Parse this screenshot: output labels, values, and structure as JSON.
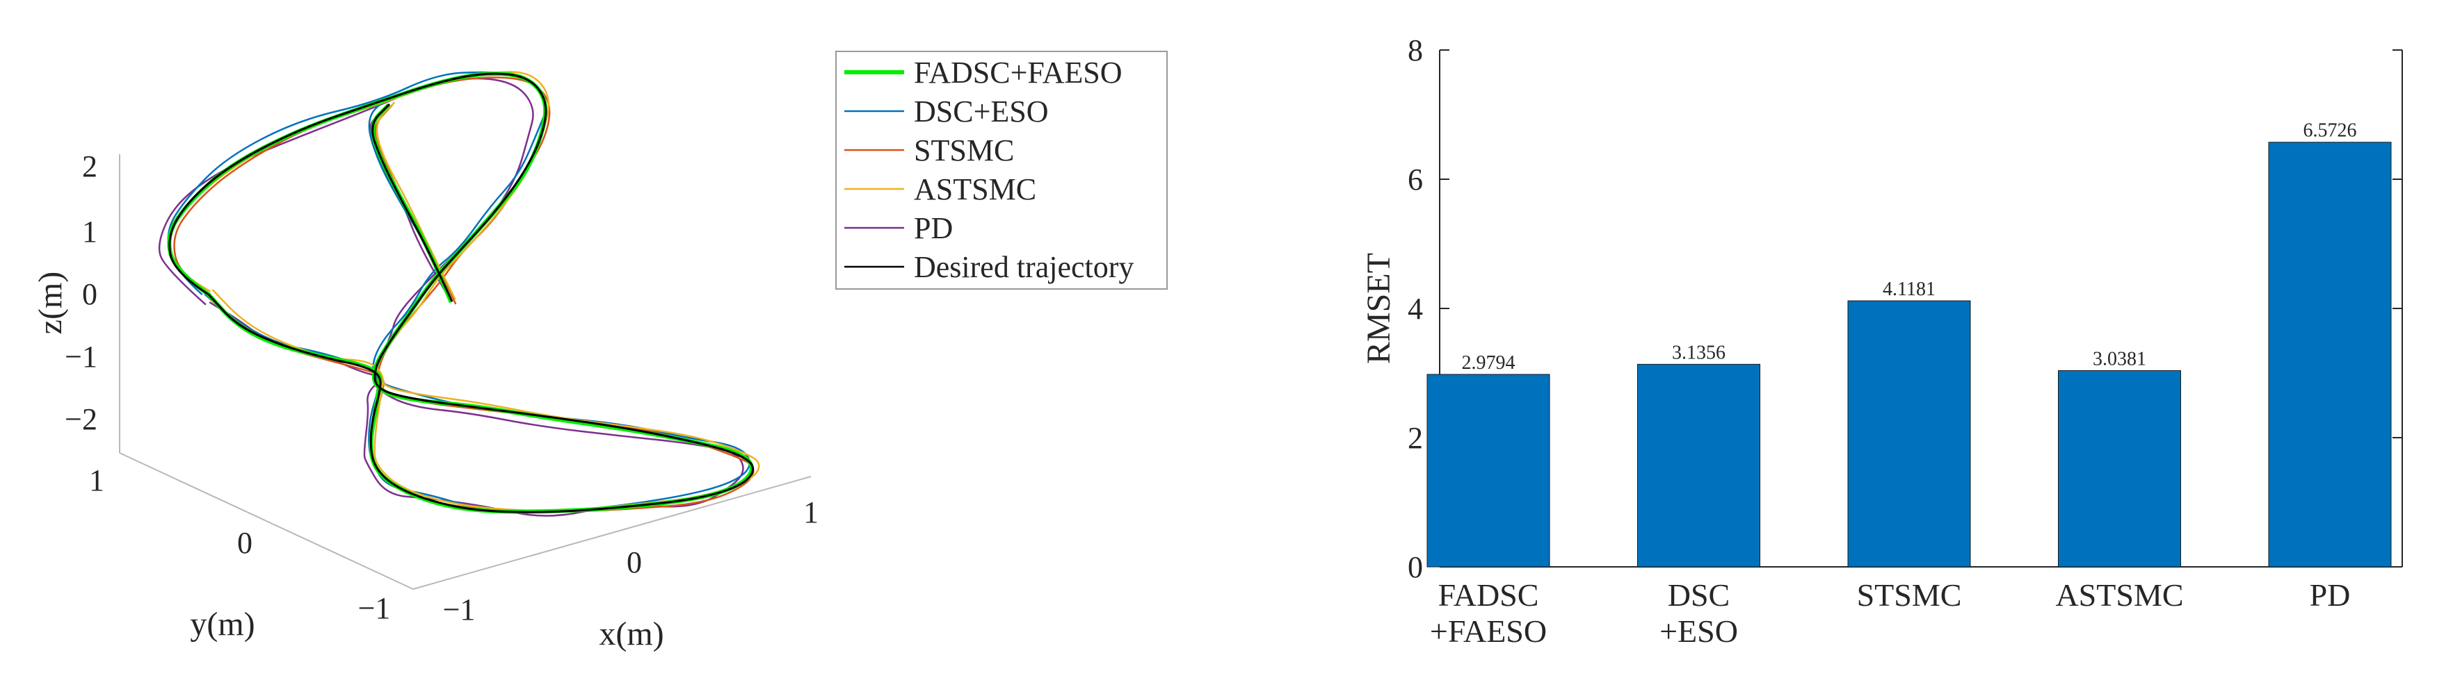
{
  "chart_data": [
    {
      "type": "line",
      "projection": "3d",
      "xlabel": "x(m)",
      "ylabel": "y(m)",
      "zlabel": "z(m)",
      "x_ticks": [
        "−1",
        "0",
        "1"
      ],
      "y_ticks": [
        "1",
        "0",
        "−1"
      ],
      "z_ticks": [
        "2",
        "1",
        "0",
        "−1",
        "−2"
      ],
      "xlim": [
        -1,
        1
      ],
      "ylim": [
        -1,
        1
      ],
      "zlim": [
        -2,
        2
      ],
      "grid": false,
      "legend_position": "top-right",
      "legend": [
        {
          "name": "FADSC+FAESO",
          "color": "#00ee00"
        },
        {
          "name": "DSC+ESO",
          "color": "#0072bd"
        },
        {
          "name": "STSMC",
          "color": "#d95319"
        },
        {
          "name": "ASTSMC",
          "color": "#edb120"
        },
        {
          "name": "PD",
          "color": "#7e2f8e"
        },
        {
          "name": "Desired trajectory",
          "color": "#000000"
        }
      ]
    },
    {
      "type": "bar",
      "ylabel": "RMSET",
      "ylim": [
        0,
        8
      ],
      "y_ticks": [
        "0",
        "2",
        "4",
        "6",
        "8"
      ],
      "categories": [
        [
          "FADSC",
          "+FAESO"
        ],
        [
          "DSC",
          "+ESO"
        ],
        [
          "STSMC"
        ],
        [
          "ASTSMC"
        ],
        [
          "PD"
        ]
      ],
      "values": [
        2.9794,
        3.1356,
        4.1181,
        3.0381,
        6.5726
      ],
      "value_labels": [
        "2.9794",
        "3.1356",
        "4.1181",
        "3.0381",
        "6.5726"
      ],
      "bar_color": "#0072bd",
      "grid": false
    }
  ]
}
